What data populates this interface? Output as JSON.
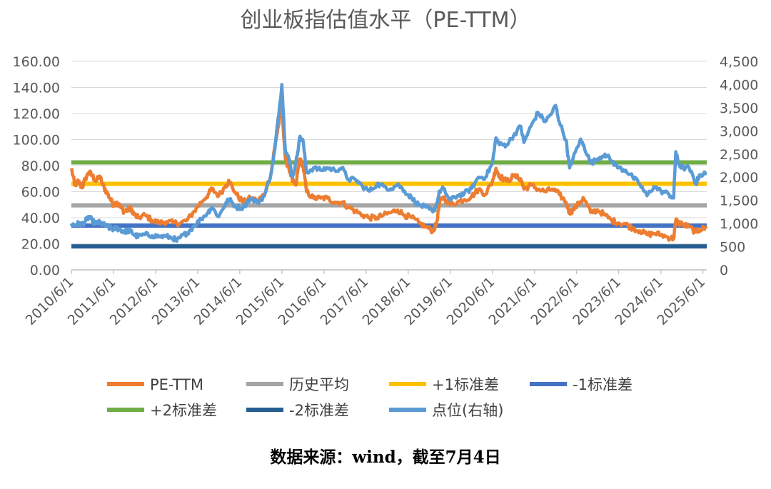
{
  "chart_data": {
    "type": "line",
    "title": "创业板指估值水平（PE-TTM）",
    "source_note": "数据来源：wind，截至7月4日",
    "x_ticks": [
      "2010/6/1",
      "2011/6/1",
      "2012/6/1",
      "2013/6/1",
      "2014/6/1",
      "2015/6/1",
      "2016/6/1",
      "2017/6/1",
      "2018/6/1",
      "2019/6/1",
      "2020/6/1",
      "2021/6/1",
      "2022/6/1",
      "2023/6/1",
      "2024/6/1",
      "2025/6/1"
    ],
    "y_left": {
      "range": [
        0,
        160
      ],
      "ticks": [
        "0.00",
        "20.00",
        "40.00",
        "60.00",
        "80.00",
        "100.00",
        "120.00",
        "140.00",
        "160.00"
      ]
    },
    "y_right": {
      "range": [
        0,
        4500
      ],
      "ticks": [
        "0",
        "500",
        "1,000",
        "1,500",
        "2,000",
        "2,500",
        "3,000",
        "3,500",
        "4,000",
        "4,500"
      ]
    },
    "grid": true,
    "legend_position": "bottom",
    "x_range": [
      "2010/6/1",
      "2025/7/4"
    ],
    "reference_lines": [
      {
        "name": "历史平均",
        "value": 49.5,
        "color": "#A5A5A5"
      },
      {
        "name": "+1标准差",
        "value": 66.0,
        "color": "#FFC000"
      },
      {
        "name": "-1标准差",
        "value": 34.0,
        "color": "#4472C4"
      },
      {
        "name": "+2标准差",
        "value": 82.5,
        "color": "#70AD47"
      },
      {
        "name": "-2标准差",
        "value": 18.0,
        "color": "#255E91"
      }
    ],
    "series": [
      {
        "name": "PE-TTM",
        "axis": "left",
        "color": "#ED7D31",
        "points": [
          [
            "2010/6/1",
            78
          ],
          [
            "2010/7/1",
            65
          ],
          [
            "2010/8/1",
            68
          ],
          [
            "2010/9/1",
            63
          ],
          [
            "2010/10/1",
            70
          ],
          [
            "2010/11/1",
            75
          ],
          [
            "2010/12/1",
            72
          ],
          [
            "2011/1/1",
            68
          ],
          [
            "2011/2/1",
            72
          ],
          [
            "2011/3/1",
            65
          ],
          [
            "2011/4/1",
            60
          ],
          [
            "2011/5/1",
            55
          ],
          [
            "2011/6/1",
            50
          ],
          [
            "2011/7/1",
            52
          ],
          [
            "2011/8/1",
            48
          ],
          [
            "2011/9/1",
            45
          ],
          [
            "2011/10/1",
            46
          ],
          [
            "2011/11/1",
            47
          ],
          [
            "2011/12/1",
            42
          ],
          [
            "2012/1/1",
            40
          ],
          [
            "2012/3/1",
            42
          ],
          [
            "2012/5/1",
            38
          ],
          [
            "2012/7/1",
            36
          ],
          [
            "2012/9/1",
            37
          ],
          [
            "2012/11/1",
            36
          ],
          [
            "2013/1/1",
            36
          ],
          [
            "2013/3/1",
            38
          ],
          [
            "2013/5/1",
            45
          ],
          [
            "2013/7/1",
            52
          ],
          [
            "2013/9/1",
            58
          ],
          [
            "2013/10/1",
            62
          ],
          [
            "2013/12/1",
            57
          ],
          [
            "2014/2/1",
            65
          ],
          [
            "2014/3/1",
            68
          ],
          [
            "2014/5/1",
            58
          ],
          [
            "2014/7/1",
            52
          ],
          [
            "2014/9/1",
            55
          ],
          [
            "2014/11/1",
            53
          ],
          [
            "2015/1/1",
            58
          ],
          [
            "2015/3/1",
            75
          ],
          [
            "2015/4/1",
            95
          ],
          [
            "2015/5/1",
            110
          ],
          [
            "2015/6/1",
            125
          ],
          [
            "2015/7/1",
            85
          ],
          [
            "2015/8/1",
            78
          ],
          [
            "2015/9/1",
            68
          ],
          [
            "2015/10/1",
            65
          ],
          [
            "2015/11/1",
            85
          ],
          [
            "2015/12/1",
            80
          ],
          [
            "2016/1/1",
            60
          ],
          [
            "2016/3/1",
            55
          ],
          [
            "2016/5/1",
            55
          ],
          [
            "2016/7/1",
            55
          ],
          [
            "2016/9/1",
            52
          ],
          [
            "2016/11/1",
            52
          ],
          [
            "2017/1/1",
            48
          ],
          [
            "2017/3/1",
            45
          ],
          [
            "2017/5/1",
            42
          ],
          [
            "2017/7/1",
            40
          ],
          [
            "2017/9/1",
            40
          ],
          [
            "2017/11/1",
            42
          ],
          [
            "2018/1/1",
            44
          ],
          [
            "2018/3/1",
            46
          ],
          [
            "2018/5/1",
            42
          ],
          [
            "2018/7/1",
            40
          ],
          [
            "2018/9/1",
            36
          ],
          [
            "2018/11/1",
            33
          ],
          [
            "2019/1/1",
            30
          ],
          [
            "2019/2/1",
            35
          ],
          [
            "2019/3/1",
            52
          ],
          [
            "2019/4/1",
            56
          ],
          [
            "2019/6/1",
            50
          ],
          [
            "2019/8/1",
            52
          ],
          [
            "2019/10/1",
            54
          ],
          [
            "2019/12/1",
            56
          ],
          [
            "2020/2/1",
            62
          ],
          [
            "2020/4/1",
            58
          ],
          [
            "2020/6/1",
            68
          ],
          [
            "2020/7/1",
            78
          ],
          [
            "2020/8/1",
            72
          ],
          [
            "2020/10/1",
            68
          ],
          [
            "2020/12/1",
            72
          ],
          [
            "2021/2/1",
            70
          ],
          [
            "2021/3/1",
            62
          ],
          [
            "2021/5/1",
            65
          ],
          [
            "2021/7/1",
            62
          ],
          [
            "2021/9/1",
            60
          ],
          [
            "2021/11/1",
            62
          ],
          [
            "2022/1/1",
            58
          ],
          [
            "2022/3/1",
            52
          ],
          [
            "2022/4/1",
            44
          ],
          [
            "2022/5/1",
            46
          ],
          [
            "2022/7/1",
            52
          ],
          [
            "2022/8/1",
            55
          ],
          [
            "2022/10/1",
            44
          ],
          [
            "2022/12/1",
            46
          ],
          [
            "2023/2/1",
            42
          ],
          [
            "2023/4/1",
            38
          ],
          [
            "2023/6/1",
            36
          ],
          [
            "2023/8/1",
            35
          ],
          [
            "2023/10/1",
            32
          ],
          [
            "2023/12/1",
            30
          ],
          [
            "2024/2/1",
            27
          ],
          [
            "2024/4/1",
            28
          ],
          [
            "2024/6/1",
            27
          ],
          [
            "2024/8/1",
            25
          ],
          [
            "2024/9/20",
            24
          ],
          [
            "2024/10/8",
            38
          ],
          [
            "2024/11/1",
            36
          ],
          [
            "2024/12/1",
            35
          ],
          [
            "2025/2/1",
            33
          ],
          [
            "2025/4/1",
            29
          ],
          [
            "2025/5/1",
            31
          ],
          [
            "2025/7/4",
            32
          ]
        ]
      },
      {
        "name": "点位(右轴)",
        "axis": "right",
        "color": "#5B9BD5",
        "points": [
          [
            "2010/6/1",
            1000
          ],
          [
            "2010/7/1",
            960
          ],
          [
            "2010/8/1",
            1000
          ],
          [
            "2010/9/1",
            980
          ],
          [
            "2010/10/1",
            1050
          ],
          [
            "2010/11/1",
            1150
          ],
          [
            "2010/12/1",
            1050
          ],
          [
            "2011/1/1",
            1000
          ],
          [
            "2011/2/1",
            1020
          ],
          [
            "2011/3/1",
            980
          ],
          [
            "2011/4/1",
            950
          ],
          [
            "2011/5/1",
            900
          ],
          [
            "2011/6/1",
            880
          ],
          [
            "2011/7/1",
            900
          ],
          [
            "2011/8/1",
            870
          ],
          [
            "2011/9/1",
            820
          ],
          [
            "2011/10/1",
            850
          ],
          [
            "2011/11/1",
            830
          ],
          [
            "2011/12/1",
            750
          ],
          [
            "2012/1/1",
            720
          ],
          [
            "2012/3/1",
            760
          ],
          [
            "2012/5/1",
            740
          ],
          [
            "2012/7/1",
            720
          ],
          [
            "2012/9/1",
            720
          ],
          [
            "2012/11/1",
            690
          ],
          [
            "2012/12/1",
            620
          ],
          [
            "2013/1/1",
            700
          ],
          [
            "2013/3/1",
            800
          ],
          [
            "2013/5/1",
            950
          ],
          [
            "2013/7/1",
            1100
          ],
          [
            "2013/9/1",
            1250
          ],
          [
            "2013/10/1",
            1350
          ],
          [
            "2013/12/1",
            1150
          ],
          [
            "2014/2/1",
            1450
          ],
          [
            "2014/3/1",
            1520
          ],
          [
            "2014/5/1",
            1350
          ],
          [
            "2014/7/1",
            1350
          ],
          [
            "2014/9/1",
            1550
          ],
          [
            "2014/11/1",
            1450
          ],
          [
            "2015/1/1",
            1600
          ],
          [
            "2015/3/1",
            2100
          ],
          [
            "2015/4/1",
            2600
          ],
          [
            "2015/5/1",
            3300
          ],
          [
            "2015/6/1",
            4000
          ],
          [
            "2015/7/1",
            2600
          ],
          [
            "2015/8/1",
            2400
          ],
          [
            "2015/9/1",
            2000
          ],
          [
            "2015/10/1",
            2300
          ],
          [
            "2015/11/1",
            2850
          ],
          [
            "2015/12/1",
            2800
          ],
          [
            "2016/1/1",
            2100
          ],
          [
            "2016/3/1",
            2200
          ],
          [
            "2016/5/1",
            2150
          ],
          [
            "2016/7/1",
            2200
          ],
          [
            "2016/9/1",
            2150
          ],
          [
            "2016/11/1",
            2200
          ],
          [
            "2017/1/1",
            1950
          ],
          [
            "2017/3/1",
            1950
          ],
          [
            "2017/5/1",
            1800
          ],
          [
            "2017/7/1",
            1700
          ],
          [
            "2017/9/1",
            1850
          ],
          [
            "2017/11/1",
            1800
          ],
          [
            "2018/1/1",
            1750
          ],
          [
            "2018/3/1",
            1850
          ],
          [
            "2018/5/1",
            1700
          ],
          [
            "2018/7/1",
            1550
          ],
          [
            "2018/9/1",
            1400
          ],
          [
            "2018/11/1",
            1350
          ],
          [
            "2019/1/1",
            1250
          ],
          [
            "2019/2/1",
            1400
          ],
          [
            "2019/3/1",
            1700
          ],
          [
            "2019/4/1",
            1750
          ],
          [
            "2019/6/1",
            1500
          ],
          [
            "2019/8/1",
            1600
          ],
          [
            "2019/10/1",
            1650
          ],
          [
            "2019/12/1",
            1750
          ],
          [
            "2020/2/1",
            2000
          ],
          [
            "2020/4/1",
            2000
          ],
          [
            "2020/6/1",
            2300
          ],
          [
            "2020/7/1",
            2850
          ],
          [
            "2020/8/1",
            2700
          ],
          [
            "2020/10/1",
            2700
          ],
          [
            "2020/12/1",
            2900
          ],
          [
            "2021/2/1",
            3100
          ],
          [
            "2021/3/1",
            2750
          ],
          [
            "2021/5/1",
            3100
          ],
          [
            "2021/7/1",
            3400
          ],
          [
            "2021/9/1",
            3200
          ],
          [
            "2021/11/1",
            3400
          ],
          [
            "2021/12/1",
            3550
          ],
          [
            "2022/1/1",
            3200
          ],
          [
            "2022/3/1",
            2800
          ],
          [
            "2022/4/1",
            2200
          ],
          [
            "2022/5/1",
            2400
          ],
          [
            "2022/7/1",
            2800
          ],
          [
            "2022/8/1",
            2700
          ],
          [
            "2022/10/1",
            2300
          ],
          [
            "2022/12/1",
            2400
          ],
          [
            "2023/2/1",
            2500
          ],
          [
            "2023/4/1",
            2350
          ],
          [
            "2023/6/1",
            2200
          ],
          [
            "2023/8/1",
            2150
          ],
          [
            "2023/10/1",
            2000
          ],
          [
            "2023/12/1",
            1850
          ],
          [
            "2024/2/1",
            1600
          ],
          [
            "2024/4/1",
            1800
          ],
          [
            "2024/6/1",
            1700
          ],
          [
            "2024/8/1",
            1650
          ],
          [
            "2024/9/20",
            1550
          ],
          [
            "2024/10/8",
            2550
          ],
          [
            "2024/11/1",
            2300
          ],
          [
            "2024/12/1",
            2200
          ],
          [
            "2025/2/1",
            2200
          ],
          [
            "2025/4/1",
            1850
          ],
          [
            "2025/5/1",
            2050
          ],
          [
            "2025/7/4",
            2080
          ]
        ]
      }
    ],
    "legend": [
      {
        "label": "PE-TTM",
        "color": "#ED7D31"
      },
      {
        "label": "历史平均",
        "color": "#A5A5A5"
      },
      {
        "label": "+1标准差",
        "color": "#FFC000"
      },
      {
        "label": "-1标准差",
        "color": "#4472C4"
      },
      {
        "label": "+2标准差",
        "color": "#70AD47"
      },
      {
        "label": "-2标准差",
        "color": "#255E91"
      },
      {
        "label": "点位(右轴)",
        "color": "#5B9BD5"
      }
    ]
  }
}
